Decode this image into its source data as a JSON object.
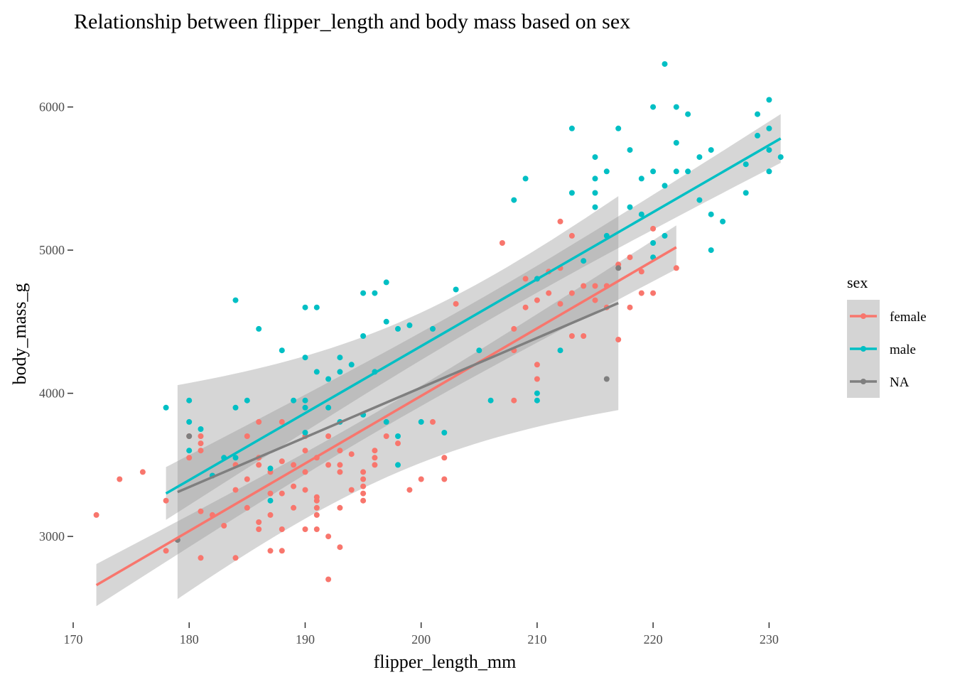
{
  "chart_data": {
    "type": "scatter",
    "title": "Relationship between flipper_length and body mass based on sex",
    "xlabel": "flipper_length_mm",
    "ylabel": "body_mass_g",
    "xlim": [
      170,
      232
    ],
    "ylim": [
      2400,
      6400
    ],
    "x_ticks": [
      170,
      180,
      190,
      200,
      210,
      220,
      230
    ],
    "y_ticks": [
      3000,
      4000,
      5000,
      6000
    ],
    "grid": false,
    "legend": {
      "title": "sex",
      "placement": "right"
    },
    "colors": {
      "female": "#F8766D",
      "male": "#00BFC4",
      "NA": "#7F7F7F",
      "ribbon": "#999999"
    },
    "series": [
      {
        "name": "female",
        "color": "#F8766D",
        "points": [
          [
            172,
            3150
          ],
          [
            174,
            3400
          ],
          [
            176,
            3450
          ],
          [
            178,
            3250
          ],
          [
            178,
            2900
          ],
          [
            180,
            3550
          ],
          [
            180,
            3700
          ],
          [
            181,
            2850
          ],
          [
            181,
            3600
          ],
          [
            181,
            3650
          ],
          [
            181,
            3700
          ],
          [
            181,
            3175
          ],
          [
            182,
            3150
          ],
          [
            182,
            3425
          ],
          [
            183,
            3075
          ],
          [
            184,
            2850
          ],
          [
            184,
            3325
          ],
          [
            184,
            3500
          ],
          [
            185,
            3400
          ],
          [
            185,
            3700
          ],
          [
            185,
            3200
          ],
          [
            186,
            3100
          ],
          [
            186,
            3050
          ],
          [
            186,
            3500
          ],
          [
            186,
            3800
          ],
          [
            186,
            3550
          ],
          [
            187,
            2900
          ],
          [
            187,
            3300
          ],
          [
            187,
            3450
          ],
          [
            187,
            3150
          ],
          [
            188,
            2900
          ],
          [
            188,
            3050
          ],
          [
            188,
            3300
          ],
          [
            188,
            3525
          ],
          [
            188,
            3800
          ],
          [
            189,
            3200
          ],
          [
            189,
            3500
          ],
          [
            189,
            3350
          ],
          [
            190,
            3050
          ],
          [
            190,
            3450
          ],
          [
            190,
            3700
          ],
          [
            190,
            3600
          ],
          [
            190,
            3325
          ],
          [
            191,
            3050
          ],
          [
            191,
            3200
          ],
          [
            191,
            3250
          ],
          [
            191,
            3275
          ],
          [
            191,
            3150
          ],
          [
            191,
            3550
          ],
          [
            192,
            2700
          ],
          [
            192,
            3000
          ],
          [
            192,
            3500
          ],
          [
            192,
            3700
          ],
          [
            193,
            2925
          ],
          [
            193,
            3200
          ],
          [
            193,
            3500
          ],
          [
            193,
            3600
          ],
          [
            193,
            3450
          ],
          [
            194,
            3325
          ],
          [
            194,
            3575
          ],
          [
            195,
            3250
          ],
          [
            195,
            3300
          ],
          [
            195,
            3450
          ],
          [
            195,
            3350
          ],
          [
            195,
            3400
          ],
          [
            196,
            3550
          ],
          [
            196,
            3600
          ],
          [
            196,
            3500
          ],
          [
            197,
            3700
          ],
          [
            198,
            3650
          ],
          [
            199,
            3325
          ],
          [
            200,
            3400
          ],
          [
            201,
            3800
          ],
          [
            202,
            3550
          ],
          [
            202,
            3400
          ],
          [
            203,
            4625
          ],
          [
            207,
            5050
          ],
          [
            208,
            3950
          ],
          [
            208,
            4450
          ],
          [
            208,
            4300
          ],
          [
            209,
            4600
          ],
          [
            209,
            4800
          ],
          [
            210,
            4650
          ],
          [
            210,
            4800
          ],
          [
            210,
            4100
          ],
          [
            210,
            4200
          ],
          [
            211,
            4700
          ],
          [
            211,
            4850
          ],
          [
            212,
            4875
          ],
          [
            212,
            5200
          ],
          [
            212,
            4625
          ],
          [
            213,
            4700
          ],
          [
            213,
            4400
          ],
          [
            213,
            5100
          ],
          [
            214,
            4750
          ],
          [
            214,
            4400
          ],
          [
            215,
            4750
          ],
          [
            215,
            4650
          ],
          [
            216,
            4600
          ],
          [
            216,
            4750
          ],
          [
            217,
            4375
          ],
          [
            217,
            4900
          ],
          [
            218,
            4950
          ],
          [
            218,
            4600
          ],
          [
            219,
            4850
          ],
          [
            219,
            4700
          ],
          [
            220,
            4700
          ],
          [
            220,
            5150
          ],
          [
            222,
            4875
          ]
        ],
        "fit": {
          "x_range": [
            172,
            222
          ],
          "y_range": [
            2660,
            5020
          ]
        }
      },
      {
        "name": "male",
        "color": "#00BFC4",
        "points": [
          [
            178,
            3900
          ],
          [
            180,
            3950
          ],
          [
            180,
            3800
          ],
          [
            180,
            3600
          ],
          [
            181,
            3750
          ],
          [
            182,
            3425
          ],
          [
            183,
            3550
          ],
          [
            184,
            3550
          ],
          [
            184,
            3900
          ],
          [
            184,
            4650
          ],
          [
            185,
            3950
          ],
          [
            186,
            4450
          ],
          [
            187,
            3250
          ],
          [
            187,
            3475
          ],
          [
            188,
            4300
          ],
          [
            189,
            3950
          ],
          [
            190,
            3950
          ],
          [
            190,
            3900
          ],
          [
            190,
            4250
          ],
          [
            190,
            4600
          ],
          [
            190,
            3725
          ],
          [
            191,
            4150
          ],
          [
            191,
            4600
          ],
          [
            192,
            3900
          ],
          [
            192,
            4100
          ],
          [
            193,
            3800
          ],
          [
            193,
            4250
          ],
          [
            193,
            4150
          ],
          [
            194,
            4200
          ],
          [
            195,
            4400
          ],
          [
            195,
            4700
          ],
          [
            195,
            3850
          ],
          [
            196,
            4150
          ],
          [
            196,
            4700
          ],
          [
            197,
            4500
          ],
          [
            197,
            3800
          ],
          [
            197,
            4775
          ],
          [
            198,
            3500
          ],
          [
            198,
            4450
          ],
          [
            198,
            3700
          ],
          [
            199,
            4475
          ],
          [
            200,
            3800
          ],
          [
            201,
            4450
          ],
          [
            202,
            3725
          ],
          [
            203,
            4725
          ],
          [
            205,
            4300
          ],
          [
            206,
            3950
          ],
          [
            208,
            5350
          ],
          [
            209,
            5500
          ],
          [
            210,
            4800
          ],
          [
            210,
            4000
          ],
          [
            210,
            3950
          ],
          [
            212,
            4300
          ],
          [
            213,
            5850
          ],
          [
            213,
            5400
          ],
          [
            214,
            4925
          ],
          [
            215,
            5300
          ],
          [
            215,
            5650
          ],
          [
            215,
            5500
          ],
          [
            215,
            5400
          ],
          [
            216,
            5550
          ],
          [
            216,
            5100
          ],
          [
            217,
            5850
          ],
          [
            218,
            5300
          ],
          [
            218,
            5700
          ],
          [
            219,
            5250
          ],
          [
            219,
            5500
          ],
          [
            220,
            6000
          ],
          [
            220,
            5050
          ],
          [
            220,
            5550
          ],
          [
            220,
            4950
          ],
          [
            221,
            5450
          ],
          [
            221,
            6300
          ],
          [
            221,
            5100
          ],
          [
            222,
            5550
          ],
          [
            222,
            6000
          ],
          [
            222,
            5750
          ],
          [
            223,
            5550
          ],
          [
            223,
            5950
          ],
          [
            224,
            5650
          ],
          [
            224,
            5350
          ],
          [
            225,
            5250
          ],
          [
            225,
            5000
          ],
          [
            225,
            5700
          ],
          [
            226,
            5200
          ],
          [
            228,
            5400
          ],
          [
            228,
            5600
          ],
          [
            229,
            5800
          ],
          [
            229,
            5950
          ],
          [
            230,
            5850
          ],
          [
            230,
            6050
          ],
          [
            230,
            5700
          ],
          [
            230,
            5550
          ],
          [
            231,
            5650
          ]
        ],
        "fit": {
          "x_range": [
            178,
            231
          ],
          "y_range": [
            3300,
            5780
          ]
        }
      },
      {
        "name": "NA",
        "color": "#7F7F7F",
        "points": [
          [
            179,
            2975
          ],
          [
            180,
            3700
          ],
          [
            216,
            4100
          ],
          [
            217,
            4875
          ]
        ],
        "fit": {
          "x_range": [
            179,
            217
          ],
          "y_range": [
            3310,
            4630
          ]
        }
      }
    ]
  }
}
